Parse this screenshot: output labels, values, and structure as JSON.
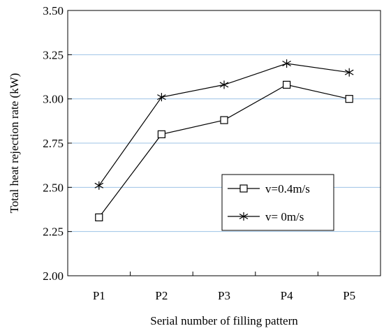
{
  "chart_data": {
    "type": "line",
    "title": "",
    "xlabel": "Serial number of filling pattern",
    "ylabel": "Total heat rejection rate (kW)",
    "categories": [
      "P1",
      "P2",
      "P3",
      "P4",
      "P5"
    ],
    "y_ticks": [
      "2.00",
      "2.25",
      "2.50",
      "2.75",
      "3.00",
      "3.25",
      "3.50"
    ],
    "ylim": [
      2.0,
      3.5
    ],
    "grid": "horizontal",
    "legend_placement": "right-middle",
    "series": [
      {
        "name": "v=0.4m/s",
        "marker": "square",
        "values": [
          2.33,
          2.8,
          2.88,
          3.08,
          3.0
        ]
      },
      {
        "name": "v= 0m/s",
        "marker": "asterisk",
        "values": [
          2.51,
          3.01,
          3.08,
          3.2,
          3.15
        ]
      }
    ],
    "colors": {
      "line": "#000000",
      "grid": "#9dc3e6",
      "frame": "#000000"
    }
  }
}
